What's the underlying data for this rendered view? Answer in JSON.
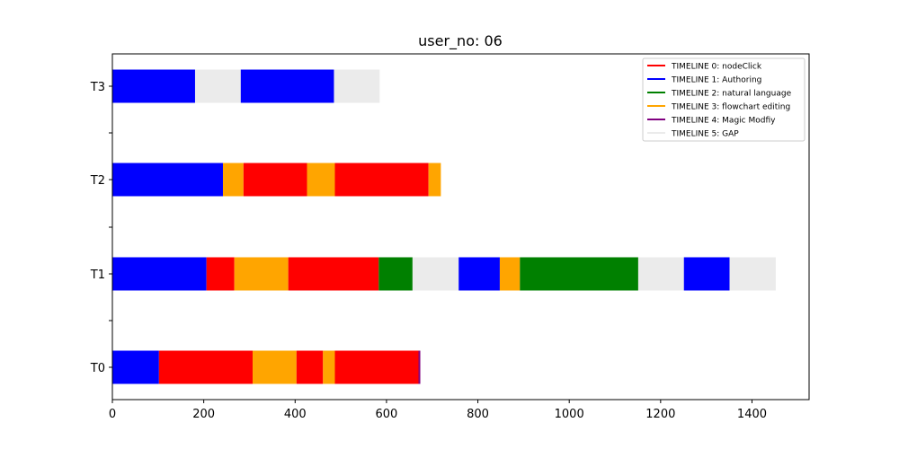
{
  "chart_data": {
    "type": "bar",
    "title": "user_no: 06",
    "xlabel": "",
    "ylabel": "",
    "xlim": [
      0,
      1525
    ],
    "x_ticks": [
      "0",
      "200",
      "400",
      "600",
      "800",
      "1000",
      "1200",
      "1400"
    ],
    "x_tick_values": [
      0,
      200,
      400,
      600,
      800,
      1000,
      1200,
      1400
    ],
    "categories": [
      "T0",
      "T1",
      "T2",
      "T3"
    ],
    "legend_position": "top-right",
    "legend": [
      {
        "label": "TIMELINE 0: nodeClick",
        "color": "#ff0000"
      },
      {
        "label": "TIMELINE 1: Authoring",
        "color": "#0000ff"
      },
      {
        "label": "TIMELINE 2: natural language",
        "color": "#008000"
      },
      {
        "label": "TIMELINE 3: flowchart editing",
        "color": "#ffa500"
      },
      {
        "label": "TIMELINE 4: Magic Modfiy",
        "color": "#800080"
      },
      {
        "label": "TIMELINE 5: GAP",
        "color": "#ebebeb"
      }
    ],
    "rows": [
      {
        "category": "T0",
        "segments": [
          {
            "start": 0,
            "end": 102,
            "timeline": 1
          },
          {
            "start": 102,
            "end": 307,
            "timeline": 0
          },
          {
            "start": 307,
            "end": 403,
            "timeline": 3
          },
          {
            "start": 403,
            "end": 461,
            "timeline": 0
          },
          {
            "start": 461,
            "end": 487,
            "timeline": 3
          },
          {
            "start": 487,
            "end": 670,
            "timeline": 0
          },
          {
            "start": 670,
            "end": 674,
            "timeline": 4
          }
        ]
      },
      {
        "category": "T1",
        "segments": [
          {
            "start": 0,
            "end": 206,
            "timeline": 1
          },
          {
            "start": 206,
            "end": 267,
            "timeline": 0
          },
          {
            "start": 267,
            "end": 385,
            "timeline": 3
          },
          {
            "start": 385,
            "end": 583,
            "timeline": 0
          },
          {
            "start": 583,
            "end": 657,
            "timeline": 2
          },
          {
            "start": 657,
            "end": 758,
            "timeline": 5
          },
          {
            "start": 758,
            "end": 848,
            "timeline": 1
          },
          {
            "start": 848,
            "end": 892,
            "timeline": 3
          },
          {
            "start": 892,
            "end": 1151,
            "timeline": 2
          },
          {
            "start": 1151,
            "end": 1251,
            "timeline": 5
          },
          {
            "start": 1251,
            "end": 1351,
            "timeline": 1
          },
          {
            "start": 1351,
            "end": 1452,
            "timeline": 5
          }
        ]
      },
      {
        "category": "T2",
        "segments": [
          {
            "start": 0,
            "end": 242,
            "timeline": 1
          },
          {
            "start": 242,
            "end": 287,
            "timeline": 3
          },
          {
            "start": 287,
            "end": 426,
            "timeline": 0
          },
          {
            "start": 426,
            "end": 487,
            "timeline": 3
          },
          {
            "start": 487,
            "end": 692,
            "timeline": 0
          },
          {
            "start": 692,
            "end": 719,
            "timeline": 3
          }
        ]
      },
      {
        "category": "T3",
        "segments": [
          {
            "start": 0,
            "end": 181,
            "timeline": 1
          },
          {
            "start": 181,
            "end": 281,
            "timeline": 5
          },
          {
            "start": 281,
            "end": 485,
            "timeline": 1
          },
          {
            "start": 485,
            "end": 585,
            "timeline": 5
          }
        ]
      }
    ]
  }
}
